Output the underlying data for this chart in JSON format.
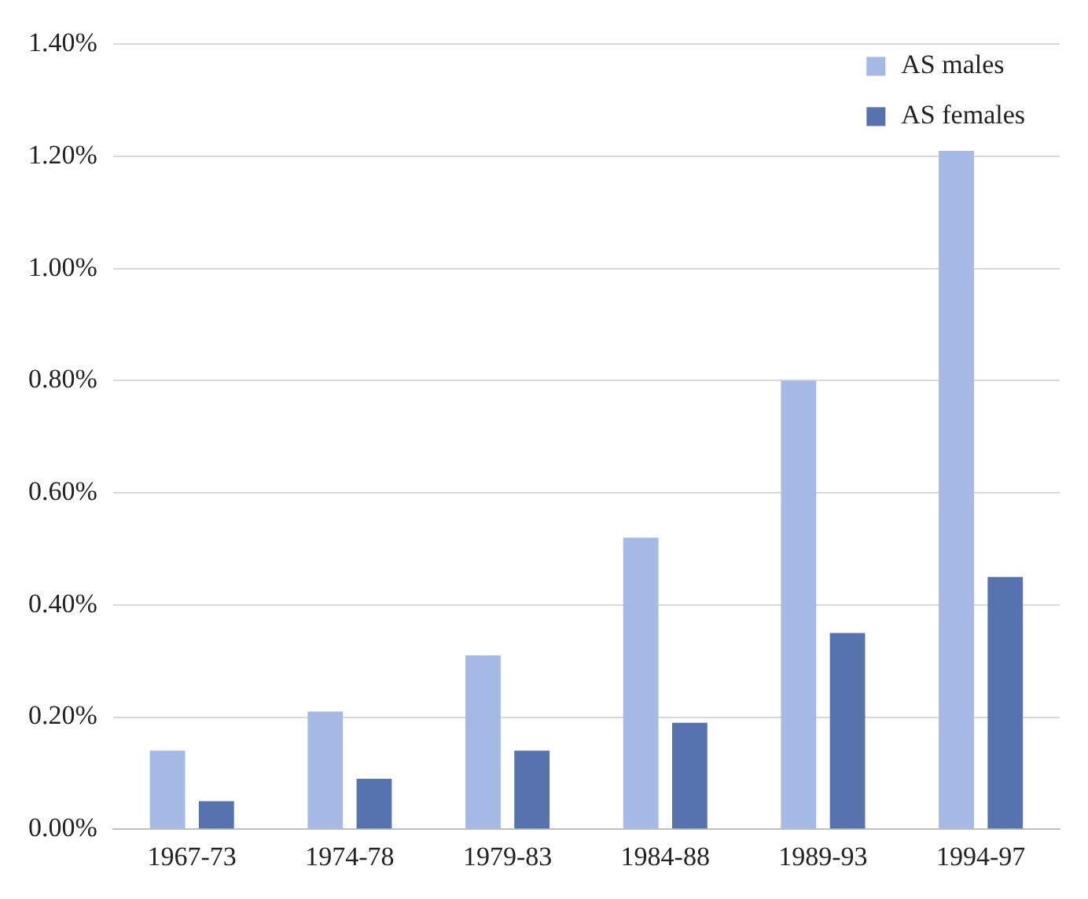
{
  "chart_data": {
    "type": "bar",
    "categories": [
      "1967-73",
      "1974-78",
      "1979-83",
      "1984-88",
      "1989-93",
      "1994-97"
    ],
    "series": [
      {
        "name": "AS males",
        "color": "#a4b9e3",
        "values": [
          0.14,
          0.21,
          0.31,
          0.52,
          0.8,
          1.21
        ]
      },
      {
        "name": "AS females",
        "color": "#5673ad",
        "values": [
          0.05,
          0.09,
          0.14,
          0.19,
          0.35,
          0.45
        ]
      }
    ],
    "ylim": [
      0,
      1.4
    ],
    "yticks": [
      {
        "value": 0,
        "label": "0.00%"
      },
      {
        "value": 0.2,
        "label": "0.20%"
      },
      {
        "value": 0.4,
        "label": "0.40%"
      },
      {
        "value": 0.6,
        "label": "0.60%"
      },
      {
        "value": 0.8,
        "label": "0.80%"
      },
      {
        "value": 1.0,
        "label": "1.00%"
      },
      {
        "value": 1.2,
        "label": "1.20%"
      },
      {
        "value": 1.4,
        "label": "1.40%"
      }
    ],
    "grid": "y",
    "legend": "top right"
  }
}
